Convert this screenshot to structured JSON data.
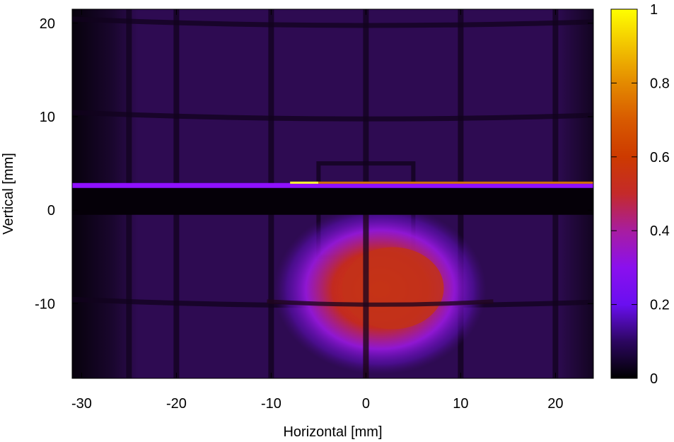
{
  "chart_data": {
    "type": "heatmap",
    "title": "",
    "xlabel": "Horizontal [mm]",
    "ylabel": "Vertical [mm]",
    "xlim": [
      -31,
      24
    ],
    "ylim": [
      -18,
      21.5
    ],
    "x_ticks": [
      -30,
      -20,
      -10,
      0,
      10,
      20
    ],
    "y_ticks": [
      -10,
      0,
      10,
      20
    ],
    "colorbar": {
      "range": [
        0,
        1
      ],
      "ticks": [
        0,
        0.2,
        0.4,
        0.6,
        0.8,
        1
      ],
      "tick_labels": [
        "0",
        "0.2",
        "0.4",
        "0.6",
        "0.8",
        "1"
      ],
      "colormap": "black-purple-red-orange-yellow"
    },
    "background_level": 0.1,
    "features": {
      "beam_spot": {
        "center_x": 1.5,
        "center_y": -8.5,
        "peak": 0.55,
        "description_level": "red core"
      },
      "dark_band": {
        "y_from": -0.5,
        "y_to": 2.5,
        "level": 0.0
      },
      "bright_line": {
        "y": 2.6,
        "x_from": -31,
        "x_to": 24,
        "level": 0.3
      },
      "hot_segment": {
        "y": 2.9,
        "x_from": -8,
        "x_to": 24,
        "level": 1.0
      },
      "grid_lines_x": [
        -25,
        -20,
        -10,
        0,
        10,
        20
      ],
      "grid_lines_y": [
        -10,
        10,
        20
      ],
      "square_frame": {
        "x_from": -5,
        "x_to": 5,
        "y_from": -5,
        "y_to": 5
      }
    }
  }
}
